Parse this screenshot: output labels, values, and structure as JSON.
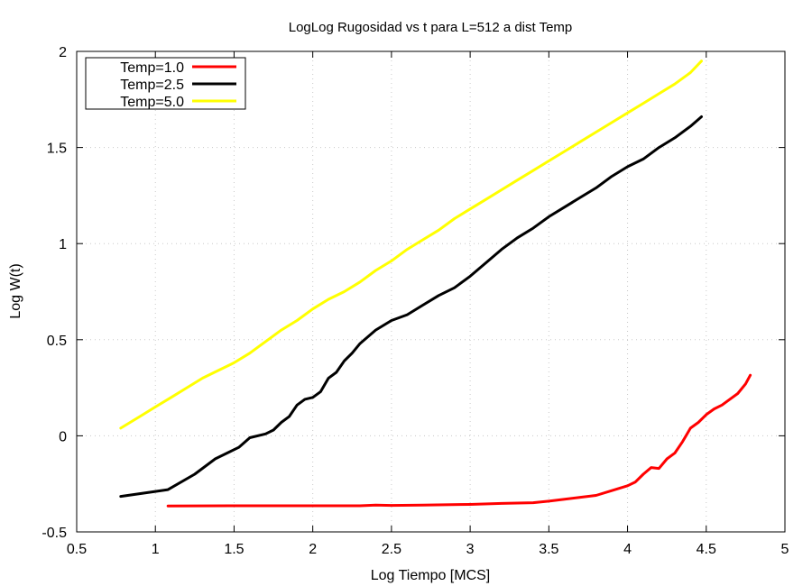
{
  "chart_data": {
    "type": "line",
    "title": "LogLog Rugosidad vs t para L=512 a dist Temp",
    "xlabel": "Log Tiempo [MCS]",
    "ylabel": "Log W(t)",
    "xlim": [
      0.5,
      5
    ],
    "ylim": [
      -0.5,
      2
    ],
    "xticks": [
      "0.5",
      "1",
      "1.5",
      "2",
      "2.5",
      "3",
      "3.5",
      "4",
      "4.5",
      "5"
    ],
    "yticks": [
      "-0.5",
      "0",
      "0.5",
      "1",
      "1.5",
      "2"
    ],
    "grid": true,
    "legend_position": "top-left",
    "series": [
      {
        "name": "Temp=1.0",
        "color": "#ff0000",
        "x": [
          1.08,
          1.5,
          2.0,
          2.3,
          2.4,
          2.5,
          2.7,
          3.0,
          3.2,
          3.4,
          3.5,
          3.6,
          3.7,
          3.8,
          3.9,
          4.0,
          4.05,
          4.1,
          4.15,
          4.2,
          4.25,
          4.3,
          4.35,
          4.4,
          4.45,
          4.5,
          4.55,
          4.6,
          4.65,
          4.7,
          4.75,
          4.78
        ],
        "y": [
          -0.365,
          -0.364,
          -0.364,
          -0.364,
          -0.36,
          -0.362,
          -0.36,
          -0.357,
          -0.352,
          -0.348,
          -0.34,
          -0.33,
          -0.32,
          -0.31,
          -0.285,
          -0.26,
          -0.24,
          -0.2,
          -0.165,
          -0.17,
          -0.12,
          -0.09,
          -0.03,
          0.04,
          0.07,
          0.11,
          0.14,
          0.16,
          0.19,
          0.22,
          0.27,
          0.315
        ]
      },
      {
        "name": "Temp=2.5",
        "color": "#000000",
        "x": [
          0.78,
          1.08,
          1.25,
          1.38,
          1.53,
          1.6,
          1.7,
          1.75,
          1.8,
          1.85,
          1.9,
          1.95,
          2.0,
          2.05,
          2.1,
          2.15,
          2.2,
          2.25,
          2.3,
          2.4,
          2.5,
          2.6,
          2.7,
          2.8,
          2.9,
          3.0,
          3.1,
          3.2,
          3.3,
          3.4,
          3.5,
          3.6,
          3.7,
          3.8,
          3.9,
          4.0,
          4.1,
          4.2,
          4.3,
          4.4,
          4.47
        ],
        "y": [
          -0.315,
          -0.28,
          -0.2,
          -0.12,
          -0.06,
          -0.01,
          0.01,
          0.03,
          0.07,
          0.1,
          0.16,
          0.19,
          0.2,
          0.23,
          0.3,
          0.33,
          0.39,
          0.43,
          0.48,
          0.55,
          0.6,
          0.63,
          0.68,
          0.73,
          0.77,
          0.83,
          0.9,
          0.97,
          1.03,
          1.08,
          1.14,
          1.19,
          1.24,
          1.29,
          1.35,
          1.4,
          1.44,
          1.5,
          1.55,
          1.61,
          1.66
        ]
      },
      {
        "name": "Temp=5.0",
        "color": "#ffff00",
        "x": [
          0.78,
          0.9,
          1.0,
          1.1,
          1.2,
          1.3,
          1.4,
          1.5,
          1.6,
          1.7,
          1.8,
          1.9,
          2.0,
          2.1,
          2.2,
          2.3,
          2.4,
          2.5,
          2.6,
          2.7,
          2.8,
          2.9,
          3.0,
          3.1,
          3.2,
          3.3,
          3.4,
          3.5,
          3.6,
          3.7,
          3.8,
          3.9,
          4.0,
          4.1,
          4.2,
          4.3,
          4.4,
          4.47
        ],
        "y": [
          0.04,
          0.1,
          0.15,
          0.2,
          0.25,
          0.3,
          0.34,
          0.38,
          0.43,
          0.49,
          0.55,
          0.6,
          0.66,
          0.71,
          0.75,
          0.8,
          0.86,
          0.91,
          0.97,
          1.02,
          1.07,
          1.13,
          1.18,
          1.23,
          1.28,
          1.33,
          1.38,
          1.43,
          1.48,
          1.53,
          1.58,
          1.63,
          1.68,
          1.73,
          1.78,
          1.83,
          1.89,
          1.95
        ]
      }
    ]
  }
}
